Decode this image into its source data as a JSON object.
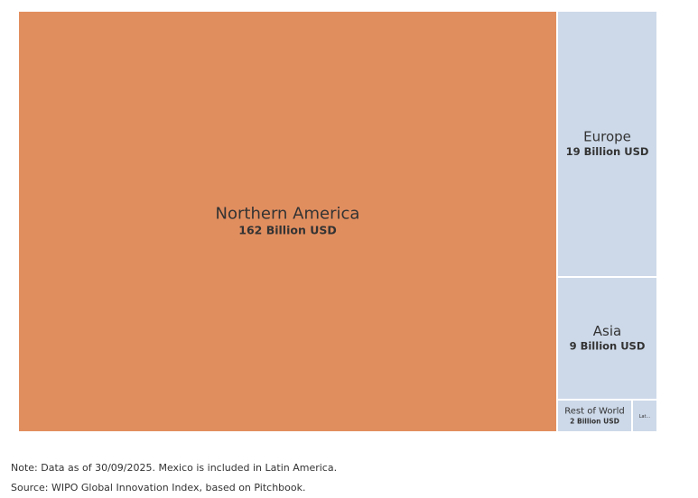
{
  "chart_data": {
    "type": "treemap",
    "unit": "Billion USD",
    "items": [
      {
        "name": "Northern America",
        "value": 162,
        "value_label": "162 Billion USD",
        "color": "#e18e5f"
      },
      {
        "name": "Europe",
        "value": 19,
        "value_label": "19 Billion USD",
        "color": "#cdd9e9"
      },
      {
        "name": "Asia",
        "value": 9,
        "value_label": "9 Billion USD",
        "color": "#cdd9e9"
      },
      {
        "name": "Rest of World",
        "value": 2,
        "value_label": "2 Billion USD",
        "color": "#cdd9e9"
      },
      {
        "name": "Lat...",
        "value": 1,
        "value_label": "",
        "color": "#cdd9e9"
      }
    ]
  },
  "notes": {
    "note": "Note: Data as of 30/09/2025. Mexico is included in Latin America.",
    "source": "Source: WIPO Global Innovation Index, based on Pitchbook."
  }
}
